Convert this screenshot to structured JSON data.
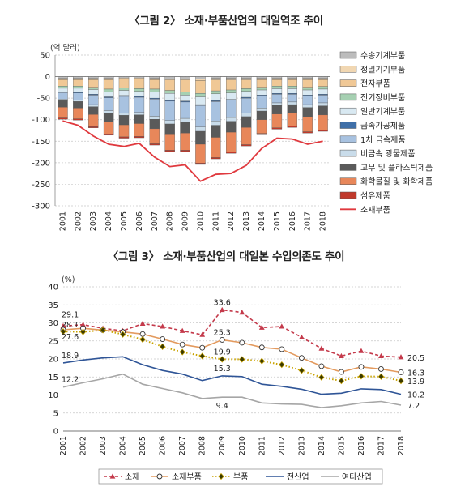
{
  "chart_data": [
    {
      "type": "bar",
      "title": "〈그림 2〉 소재·부품산업의 대일역조 추이",
      "ylabel": "(억 달러)",
      "ylim": [
        -300,
        50
      ],
      "yticks": [
        50,
        0,
        -50,
        -100,
        -150,
        -200,
        -250,
        -300
      ],
      "grid": true,
      "legend_placement": "right",
      "categories": [
        "2001",
        "2002",
        "2003",
        "2004",
        "2005",
        "2006",
        "2007",
        "2008",
        "2009",
        "2010",
        "2011",
        "2012",
        "2013",
        "2014",
        "2015",
        "2016",
        "2017",
        "2018"
      ],
      "series": [
        {
          "name": "수송기계부품",
          "color": "#bcbcbc",
          "values": [
            -4,
            -4,
            -4,
            -4,
            -3,
            -3,
            -4,
            -5,
            -5,
            -5,
            -4,
            -4,
            -4,
            -4,
            -4,
            -4,
            -4,
            -4
          ]
        },
        {
          "name": "정밀기기부품",
          "color": "#f1d7b2",
          "values": [
            -3,
            -3,
            -3,
            -3,
            -3,
            -3,
            -3,
            -3,
            -3,
            -4,
            -4,
            -4,
            -4,
            -3,
            -3,
            -3,
            -3,
            -3
          ]
        },
        {
          "name": "전자부품",
          "color": "#f0c896",
          "values": [
            -15,
            -15,
            -18,
            -22,
            -20,
            -22,
            -22,
            -24,
            -28,
            -30,
            -25,
            -23,
            -20,
            -18,
            -15,
            -15,
            -18,
            -16
          ]
        },
        {
          "name": "전기장비부품",
          "color": "#a6d0b2",
          "values": [
            -5,
            -5,
            -5,
            -6,
            -6,
            -6,
            -7,
            -7,
            -7,
            -8,
            -7,
            -7,
            -6,
            -6,
            -6,
            -6,
            -6,
            -6
          ]
        },
        {
          "name": "일반기계부품",
          "color": "#d9e9f2",
          "values": [
            -8,
            -9,
            -11,
            -12,
            -12,
            -12,
            -14,
            -16,
            -14,
            -18,
            -16,
            -15,
            -14,
            -12,
            -11,
            -11,
            -12,
            -12
          ]
        },
        {
          "name": "금속가공제품",
          "color": "#3f6fa8",
          "values": [
            -2,
            -2,
            -2,
            -2,
            -2,
            -2,
            -2,
            -2,
            -2,
            -2,
            -2,
            -2,
            -2,
            -2,
            -2,
            -2,
            -2,
            -2
          ]
        },
        {
          "name": "1차 금속제품",
          "color": "#a8c2e0",
          "values": [
            -15,
            -16,
            -22,
            -30,
            -38,
            -35,
            -40,
            -45,
            -38,
            -50,
            -45,
            -40,
            -35,
            -28,
            -20,
            -18,
            -20,
            -18
          ]
        },
        {
          "name": "비금속 광물제품",
          "color": "#c9dcea",
          "values": [
            -4,
            -4,
            -5,
            -6,
            -6,
            -6,
            -7,
            -8,
            -9,
            -10,
            -10,
            -9,
            -8,
            -7,
            -6,
            -6,
            -7,
            -7
          ]
        },
        {
          "name": "고무 및 플라스틱제품",
          "color": "#5a5a5a",
          "values": [
            -15,
            -15,
            -18,
            -20,
            -22,
            -20,
            -22,
            -25,
            -25,
            -30,
            -28,
            -25,
            -25,
            -20,
            -20,
            -20,
            -22,
            -21
          ]
        },
        {
          "name": "화학물질 및 화학제품",
          "color": "#e8875a",
          "values": [
            -25,
            -25,
            -28,
            -28,
            -28,
            -30,
            -35,
            -36,
            -40,
            -44,
            -47,
            -46,
            -40,
            -32,
            -32,
            -30,
            -34,
            -35
          ]
        },
        {
          "name": "섬유제품",
          "color": "#c0392b",
          "values": [
            -3,
            -3,
            -3,
            -3,
            -3,
            -3,
            -3,
            -3,
            -3,
            -3,
            -3,
            -3,
            -3,
            -3,
            -3,
            -3,
            -3,
            -3
          ]
        },
        {
          "name": "소재부품",
          "type": "line",
          "color": "#e0393e",
          "values": [
            -103,
            -113,
            -138,
            -157,
            -162,
            -155,
            -187,
            -209,
            -205,
            -243,
            -227,
            -225,
            -206,
            -167,
            -143,
            -145,
            -157,
            -150
          ]
        }
      ]
    },
    {
      "type": "line",
      "title": "〈그림 3〉 소재·부품산업의 대일본 수입의존도 추이",
      "ylabel": "(%)",
      "ylim": [
        0,
        40
      ],
      "yticks": [
        0,
        5,
        10,
        15,
        20,
        25,
        30,
        35,
        40
      ],
      "grid": true,
      "legend_placement": "bottom",
      "x": [
        "2001",
        "2002",
        "2003",
        "2004",
        "2005",
        "2006",
        "2007",
        "2008",
        "2009",
        "2010",
        "2011",
        "2012",
        "2013",
        "2014",
        "2015",
        "2016",
        "2017",
        "2018"
      ],
      "series": [
        {
          "name": "소재",
          "color": "#c43a4b",
          "style": "dashed",
          "marker": "triangle",
          "values": [
            29.1,
            29.5,
            28.5,
            27.8,
            29.8,
            29.0,
            27.8,
            26.7,
            33.6,
            32.9,
            28.7,
            29.0,
            26.0,
            22.9,
            20.8,
            22.2,
            20.8,
            20.5
          ]
        },
        {
          "name": "소재부품",
          "color": "#e39a5e",
          "style": "solid",
          "marker": "circle",
          "values": [
            28.1,
            28.5,
            28.0,
            27.5,
            26.9,
            25.5,
            24.0,
            23.1,
            25.3,
            24.5,
            23.2,
            22.7,
            20.3,
            18.0,
            16.4,
            17.8,
            17.2,
            16.3
          ]
        },
        {
          "name": "부품",
          "color": "#c9a300",
          "style": "dotted",
          "marker": "diamond",
          "values": [
            27.6,
            27.5,
            28.0,
            26.8,
            25.4,
            23.4,
            21.9,
            20.8,
            19.9,
            19.9,
            19.4,
            18.4,
            16.8,
            14.9,
            13.9,
            15.2,
            15.1,
            13.9
          ]
        },
        {
          "name": "전산업",
          "color": "#2f5597",
          "style": "solid",
          "marker": "none",
          "values": [
            18.9,
            19.7,
            20.3,
            20.6,
            18.4,
            16.8,
            15.8,
            14.0,
            15.3,
            15.1,
            13.0,
            12.4,
            11.6,
            10.2,
            10.5,
            11.7,
            11.5,
            10.2
          ]
        },
        {
          "name": "여타산업",
          "color": "#a6a6a6",
          "style": "solid",
          "marker": "none",
          "values": [
            12.2,
            13.4,
            14.5,
            15.8,
            13.0,
            11.8,
            10.6,
            9.0,
            9.4,
            9.4,
            7.8,
            7.5,
            7.4,
            6.5,
            7.0,
            7.8,
            8.2,
            7.2
          ]
        }
      ],
      "annotations": [
        {
          "series": "소재",
          "x": "2001",
          "label": "29.1"
        },
        {
          "series": "소재",
          "x": "2009",
          "label": "33.6"
        },
        {
          "series": "소재",
          "x": "2018",
          "label": "20.5"
        },
        {
          "series": "소재부품",
          "x": "2001",
          "label": "28.1"
        },
        {
          "series": "소재부품",
          "x": "2009",
          "label": "25.3"
        },
        {
          "series": "소재부품",
          "x": "2018",
          "label": "16.3"
        },
        {
          "series": "부품",
          "x": "2001",
          "label": "27.6"
        },
        {
          "series": "부품",
          "x": "2009",
          "label": "19.9"
        },
        {
          "series": "부품",
          "x": "2018",
          "label": "13.9"
        },
        {
          "series": "전산업",
          "x": "2001",
          "label": "18.9"
        },
        {
          "series": "전산업",
          "x": "2009",
          "label": "15.3"
        },
        {
          "series": "전산업",
          "x": "2018",
          "label": "10.2"
        },
        {
          "series": "여타산업",
          "x": "2001",
          "label": "12.2"
        },
        {
          "series": "여타산업",
          "x": "2009",
          "label": "9.4"
        },
        {
          "series": "여타산업",
          "x": "2018",
          "label": "7.2"
        }
      ]
    }
  ]
}
